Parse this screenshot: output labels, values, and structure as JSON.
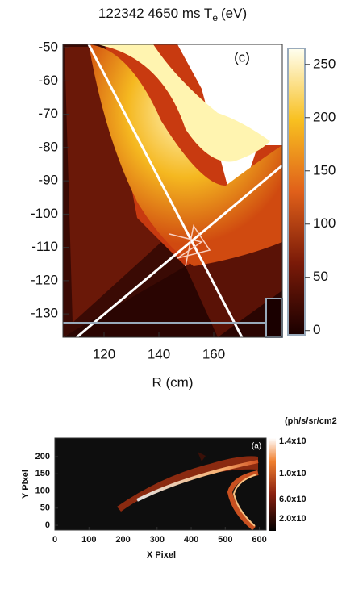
{
  "chart_data": [
    {
      "type": "heatmap",
      "title": "122342 4650 ms T",
      "title_subscript": "e",
      "title_unit": "(eV)",
      "annotation": "(c)",
      "xlabel": "R (cm)",
      "xlim": [
        105,
        185
      ],
      "xticks": [
        120,
        140,
        160
      ],
      "ylim": [
        -137,
        -49
      ],
      "yticks": [
        -50,
        -60,
        -70,
        -80,
        -90,
        -100,
        -110,
        -120,
        -130
      ],
      "clim": [
        -4,
        265
      ],
      "cticks": [
        0,
        50,
        100,
        150,
        200,
        250
      ]
    },
    {
      "type": "heatmap",
      "annotation": "(a)",
      "xlabel": "X Pixel",
      "ylabel": "Y Pixel",
      "colorbar_label": "(ph/s/sr/cm2",
      "colorbar_labels": [
        "1.4x10",
        "1.0x10",
        "6.0x10",
        "2.0x10"
      ],
      "xlim": [
        0,
        620
      ],
      "xticks": [
        0,
        100,
        200,
        300,
        400,
        500,
        600
      ],
      "ylim": [
        -14,
        254
      ],
      "yticks": [
        0,
        50,
        100,
        150,
        200
      ]
    }
  ]
}
